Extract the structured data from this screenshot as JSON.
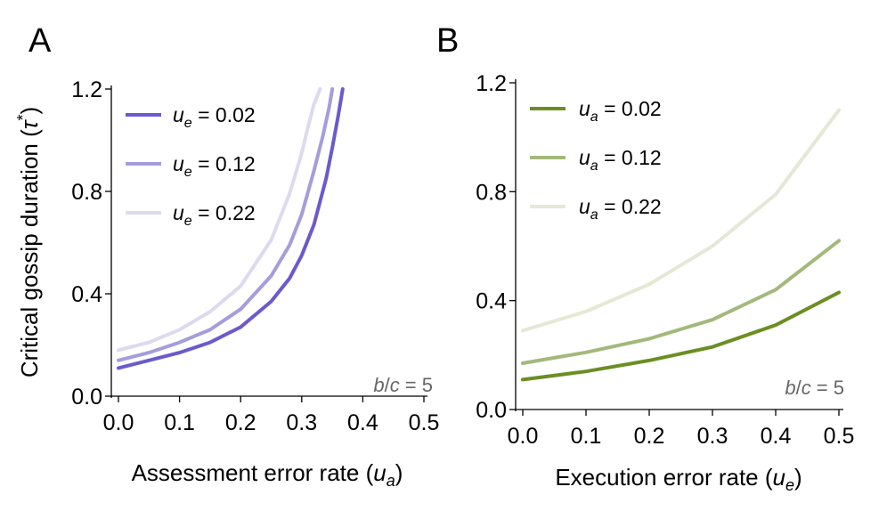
{
  "chart_data": [
    {
      "panel": "A",
      "type": "line",
      "title": "",
      "xlabel": {
        "main": "Assessment error rate (",
        "var": "u",
        "sub": "a",
        "close": ")"
      },
      "ylabel": {
        "main": "Critical gossip duration (",
        "var": "τ",
        "sup": "*",
        "close": ")"
      },
      "xlim": [
        0,
        0.5
      ],
      "ylim": [
        0,
        1.2
      ],
      "xticks": [
        "0.0",
        "0.1",
        "0.2",
        "0.3",
        "0.4",
        "0.5"
      ],
      "yticks": [
        "0.0",
        "0.4",
        "0.8",
        "1.2"
      ],
      "annotation": {
        "b": "b",
        "slash": "/",
        "c": "c",
        "eq": " = 5"
      },
      "series": [
        {
          "name": "ue = 0.02",
          "legend": {
            "var": "u",
            "sub": "e",
            "value": " = 0.02"
          },
          "color": "#6a5acd",
          "x": [
            0,
            0.05,
            0.1,
            0.15,
            0.2,
            0.25,
            0.28,
            0.3,
            0.32,
            0.34,
            0.35,
            0.36,
            0.367
          ],
          "y": [
            0.11,
            0.14,
            0.17,
            0.21,
            0.27,
            0.37,
            0.46,
            0.55,
            0.67,
            0.85,
            0.97,
            1.1,
            1.2
          ]
        },
        {
          "name": "ue = 0.12",
          "legend": {
            "var": "u",
            "sub": "e",
            "value": " = 0.12"
          },
          "color": "#a59ddb",
          "x": [
            0,
            0.05,
            0.1,
            0.15,
            0.2,
            0.25,
            0.28,
            0.3,
            0.32,
            0.335,
            0.345,
            0.35
          ],
          "y": [
            0.14,
            0.17,
            0.21,
            0.26,
            0.34,
            0.47,
            0.59,
            0.71,
            0.88,
            1.02,
            1.13,
            1.2
          ]
        },
        {
          "name": "ue = 0.22",
          "legend": {
            "var": "u",
            "sub": "e",
            "value": " = 0.22"
          },
          "color": "#dddaf0",
          "x": [
            0,
            0.05,
            0.1,
            0.15,
            0.2,
            0.25,
            0.28,
            0.3,
            0.31,
            0.32,
            0.33
          ],
          "y": [
            0.18,
            0.21,
            0.26,
            0.33,
            0.43,
            0.61,
            0.79,
            0.95,
            1.05,
            1.14,
            1.2
          ]
        }
      ]
    },
    {
      "panel": "B",
      "type": "line",
      "title": "",
      "xlabel": {
        "main": "Execution error rate (",
        "var": "u",
        "sub": "e",
        "close": ")"
      },
      "ylabel": null,
      "xlim": [
        0,
        0.5
      ],
      "ylim": [
        0,
        1.2
      ],
      "xticks": [
        "0.0",
        "0.1",
        "0.2",
        "0.3",
        "0.4",
        "0.5"
      ],
      "yticks": [
        "0.0",
        "0.4",
        "0.8",
        "1.2"
      ],
      "annotation": {
        "b": "b",
        "slash": "/",
        "c": "c",
        "eq": " = 5"
      },
      "series": [
        {
          "name": "ua = 0.02",
          "legend": {
            "var": "u",
            "sub": "a",
            "value": " = 0.02"
          },
          "color": "#6b8e23",
          "x": [
            0,
            0.1,
            0.2,
            0.3,
            0.4,
            0.5
          ],
          "y": [
            0.11,
            0.14,
            0.18,
            0.23,
            0.31,
            0.43
          ]
        },
        {
          "name": "ua = 0.12",
          "legend": {
            "var": "u",
            "sub": "a",
            "value": " = 0.12"
          },
          "color": "#a3b97b",
          "x": [
            0,
            0.1,
            0.2,
            0.3,
            0.4,
            0.5
          ],
          "y": [
            0.17,
            0.21,
            0.26,
            0.33,
            0.44,
            0.62
          ]
        },
        {
          "name": "ua = 0.22",
          "legend": {
            "var": "u",
            "sub": "a",
            "value": " = 0.22"
          },
          "color": "#e3e9d5",
          "x": [
            0,
            0.1,
            0.2,
            0.3,
            0.4,
            0.5
          ],
          "y": [
            0.29,
            0.36,
            0.46,
            0.6,
            0.79,
            1.1
          ]
        }
      ]
    }
  ]
}
